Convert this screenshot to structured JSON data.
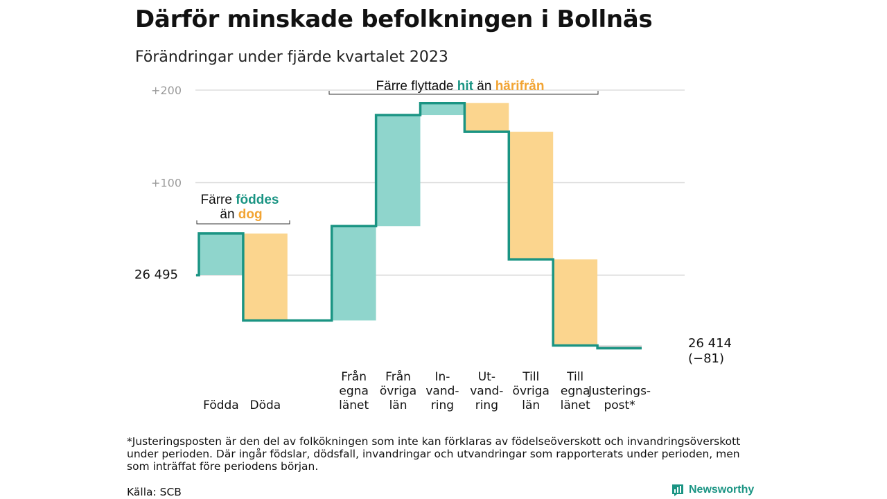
{
  "title": "Därför minskade befolkningen i Bollnäs",
  "subtitle": "Förändringar under fjärde kvartalet 2023",
  "chart_data": {
    "type": "bar",
    "subtype": "waterfall",
    "start_value": 26495,
    "start_label": "26  495",
    "end_label_line1": "26 414",
    "end_label_line2": "(−81)",
    "yaxis": {
      "ticks": [
        {
          "offset": 100,
          "label": "+100"
        },
        {
          "offset": 200,
          "label": "+200"
        }
      ],
      "range": [
        -85,
        200
      ]
    },
    "steps": [
      {
        "label": [
          "Födda"
        ],
        "delta": 45,
        "kind": "in"
      },
      {
        "label": [
          "Döda"
        ],
        "delta": -94,
        "kind": "out"
      },
      {
        "label": [],
        "delta": 0,
        "kind": "gap"
      },
      {
        "label": [
          "Från",
          "egna",
          "länet"
        ],
        "delta": 102,
        "kind": "in"
      },
      {
        "label": [
          "Från",
          "övriga",
          "län"
        ],
        "delta": 120,
        "kind": "in"
      },
      {
        "label": [
          "In-",
          "vand-",
          "ring"
        ],
        "delta": 13,
        "kind": "in"
      },
      {
        "label": [
          "Ut-",
          "vand-",
          "ring"
        ],
        "delta": -31,
        "kind": "out"
      },
      {
        "label": [
          "Till",
          "övriga",
          "län"
        ],
        "delta": -138,
        "kind": "out"
      },
      {
        "label": [
          "Till",
          "egna",
          "länet"
        ],
        "delta": -93,
        "kind": "out"
      },
      {
        "label": [
          "Justerings-",
          "post*"
        ],
        "delta": -3,
        "kind": "adjust"
      }
    ],
    "annotations": {
      "births": {
        "line1_prefix": "Färre",
        "line1_highlight": "föddes",
        "line2_prefix": "än",
        "line2_highlight": "dog"
      },
      "migration": {
        "prefix": "Färre flyttade",
        "highlight1": "hit",
        "middle": "än",
        "highlight2": "härifrån"
      }
    },
    "colors": {
      "in": "#8fd5cc",
      "out": "#fbd58e",
      "line": "#1a9483",
      "grid": "#dddddd",
      "adjust": "#cccccc"
    },
    "grid": true,
    "legend": "none"
  },
  "footnote": "*Justeringsposten är den del av folkökningen som inte kan förklaras av födelseöverskott och invandringsöverskott under perioden. Där ingår födslar, dödsfall, invandringar och utvandringar som rapporterats under perioden, men som inträffat före periodens början.",
  "source": "Källa: SCB",
  "brand": {
    "name": "Newsworthy",
    "icon": "newsworthy-logo-icon"
  }
}
